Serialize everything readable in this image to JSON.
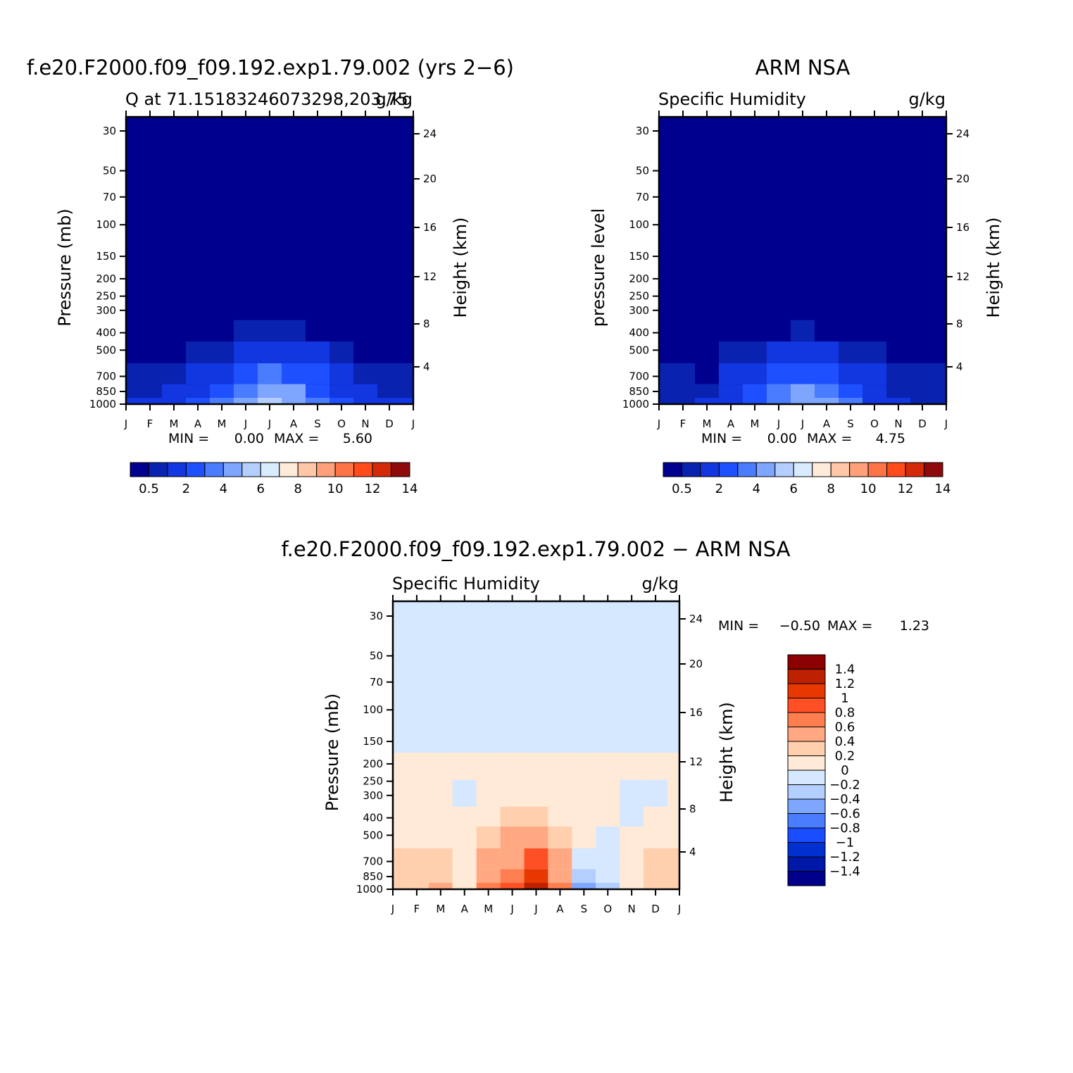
{
  "chart_data": [
    {
      "type": "heatmap",
      "title": "f.e20.F2000.f09_f09.192.exp1.79.002 (yrs 2−6)",
      "subtitle_left": "Q at 71.15183246073298,203.75",
      "subtitle_right": "g/kg",
      "xlabel": "",
      "ylabel": "Pressure (mb)",
      "y2label": "Height (km)",
      "x_ticks": [
        "J",
        "F",
        "M",
        "A",
        "M",
        "J",
        "J",
        "A",
        "S",
        "O",
        "N",
        "D",
        "J"
      ],
      "y_ticks": [
        30,
        50,
        70,
        100,
        150,
        200,
        250,
        300,
        400,
        500,
        700,
        850,
        1000
      ],
      "y_scale": "log",
      "ylim": [
        20,
        1000
      ],
      "y2_ticks": [
        24,
        20,
        16,
        12,
        8,
        4
      ],
      "min_label": "MIN =",
      "min_value": "0.00",
      "max_label": "MAX =",
      "max_value": "5.60",
      "colorbar_labels": [
        "0.5",
        "2",
        "4",
        "6",
        "8",
        "10",
        "12",
        "14"
      ],
      "months": [
        "J",
        "F",
        "M",
        "A",
        "M",
        "J",
        "J",
        "A",
        "S",
        "O",
        "N",
        "D",
        "J"
      ],
      "levels_hPa": [
        1000,
        850,
        700,
        500,
        400
      ],
      "values_g_per_kg": [
        [
          1.0,
          1.0,
          1.2,
          2.2,
          3.0,
          4.2,
          5.6,
          4.8,
          3.4,
          2.0,
          1.2,
          1.0,
          1.0
        ],
        [
          0.9,
          0.9,
          1.0,
          1.9,
          2.6,
          3.7,
          4.9,
          4.1,
          2.9,
          1.7,
          1.0,
          0.9,
          0.9
        ],
        [
          0.5,
          0.6,
          0.6,
          1.3,
          1.8,
          2.6,
          3.4,
          2.9,
          2.0,
          1.1,
          0.7,
          0.6,
          0.5
        ],
        [
          0.3,
          0.3,
          0.3,
          0.6,
          0.9,
          1.2,
          1.6,
          1.4,
          1.0,
          0.6,
          0.4,
          0.3,
          0.3
        ],
        [
          0.2,
          0.2,
          0.2,
          0.3,
          0.4,
          0.5,
          0.6,
          0.5,
          0.4,
          0.3,
          0.2,
          0.2,
          0.2
        ]
      ]
    },
    {
      "type": "heatmap",
      "title": "ARM NSA",
      "subtitle_left": "Specific Humidity",
      "subtitle_right": "g/kg",
      "xlabel": "",
      "ylabel": "pressure level",
      "y2label": "Height (km)",
      "x_ticks": [
        "J",
        "F",
        "M",
        "A",
        "M",
        "J",
        "J",
        "A",
        "S",
        "O",
        "N",
        "D",
        "J"
      ],
      "y_ticks": [
        30,
        50,
        70,
        100,
        150,
        200,
        250,
        300,
        400,
        500,
        700,
        850,
        1000
      ],
      "y_scale": "log",
      "ylim": [
        20,
        1000
      ],
      "y2_ticks": [
        24,
        20,
        16,
        12,
        8,
        4
      ],
      "min_label": "MIN =",
      "min_value": "0.00",
      "max_label": "MAX =",
      "max_value": "4.75",
      "colorbar_labels": [
        "0.5",
        "2",
        "4",
        "6",
        "8",
        "10",
        "12",
        "14"
      ],
      "months": [
        "J",
        "F",
        "M",
        "A",
        "M",
        "J",
        "J",
        "A",
        "S",
        "O",
        "N",
        "D",
        "J"
      ],
      "levels_hPa": [
        1000,
        850,
        700,
        500,
        400
      ],
      "values_g_per_kg": [
        [
          0.9,
          0.9,
          1.0,
          1.9,
          2.8,
          3.8,
          4.75,
          4.2,
          3.0,
          1.8,
          1.1,
          0.9,
          0.9
        ],
        [
          0.8,
          0.8,
          0.8,
          1.6,
          2.3,
          3.2,
          4.0,
          3.5,
          2.5,
          1.5,
          0.9,
          0.8,
          0.8
        ],
        [
          0.5,
          0.5,
          0.4,
          1.0,
          1.5,
          2.2,
          2.8,
          2.4,
          1.7,
          1.0,
          0.6,
          0.5,
          0.5
        ],
        [
          0.3,
          0.3,
          0.3,
          0.5,
          0.8,
          1.0,
          1.3,
          1.1,
          0.8,
          0.5,
          0.3,
          0.3,
          0.3
        ],
        [
          0.2,
          0.2,
          0.2,
          0.2,
          0.3,
          0.4,
          0.5,
          0.4,
          0.3,
          0.2,
          0.2,
          0.2,
          0.2
        ]
      ]
    },
    {
      "type": "heatmap",
      "title": "f.e20.F2000.f09_f09.192.exp1.79.002 − ARM NSA",
      "subtitle_left": "Specific Humidity",
      "subtitle_right": "g/kg",
      "xlabel": "",
      "ylabel": "Pressure (mb)",
      "y2label": "Height (km)",
      "x_ticks": [
        "J",
        "F",
        "M",
        "A",
        "M",
        "J",
        "J",
        "A",
        "S",
        "O",
        "N",
        "D",
        "J"
      ],
      "y_ticks": [
        30,
        50,
        70,
        100,
        150,
        200,
        250,
        300,
        400,
        500,
        700,
        850,
        1000
      ],
      "y_scale": "log",
      "ylim": [
        20,
        1000
      ],
      "y2_ticks": [
        24,
        20,
        16,
        12,
        8,
        4
      ],
      "min_label": "MIN =",
      "min_value": "−0.50",
      "max_label": "MAX =",
      "max_value": "1.23",
      "colorbar_labels": [
        "1.4",
        "1.2",
        "1",
        "0.8",
        "0.6",
        "0.4",
        "0.2",
        "0",
        "−0.2",
        "−0.4",
        "−0.6",
        "−0.8",
        "−1",
        "−1.2",
        "−1.4"
      ],
      "months": [
        "J",
        "F",
        "M",
        "A",
        "M",
        "J",
        "J",
        "A",
        "S",
        "O",
        "N",
        "D",
        "J"
      ],
      "levels_hPa": [
        1000,
        850,
        700,
        500,
        400,
        300,
        200,
        150
      ],
      "values_g_per_kg": [
        [
          0.3,
          0.35,
          0.4,
          0.1,
          0.6,
          0.8,
          1.23,
          0.6,
          -0.5,
          -0.3,
          0.1,
          0.3,
          0.3
        ],
        [
          0.3,
          0.3,
          0.3,
          0.05,
          0.5,
          0.7,
          1.0,
          0.5,
          -0.4,
          -0.2,
          0.1,
          0.35,
          0.3
        ],
        [
          0.25,
          0.25,
          0.2,
          0.05,
          0.4,
          0.55,
          0.8,
          0.4,
          -0.2,
          -0.1,
          0.1,
          0.3,
          0.2
        ],
        [
          0.1,
          0.1,
          0.1,
          0.05,
          0.3,
          0.4,
          0.5,
          0.2,
          0.0,
          -0.05,
          0.05,
          0.1,
          0.1
        ],
        [
          0.05,
          0.05,
          0.05,
          0.0,
          0.1,
          0.2,
          0.3,
          0.1,
          0.05,
          0.0,
          -0.05,
          0.05,
          0.05
        ],
        [
          0.05,
          0.05,
          0.05,
          -0.05,
          0.05,
          0.05,
          0.1,
          0.05,
          0.05,
          0.05,
          -0.05,
          -0.05,
          0.05
        ],
        [
          0.05,
          0.05,
          0.05,
          0.05,
          0.05,
          0.05,
          0.05,
          0.05,
          0.05,
          0.05,
          0.05,
          0.05,
          0.05
        ],
        [
          -0.05,
          -0.05,
          -0.05,
          -0.05,
          -0.05,
          -0.05,
          -0.05,
          -0.05,
          -0.05,
          -0.05,
          -0.05,
          -0.05,
          -0.05
        ]
      ]
    }
  ],
  "colors": {
    "seq_palette": [
      "#00008f",
      "#0a22b0",
      "#1236e0",
      "#1e50ff",
      "#4a7cff",
      "#7ea6ff",
      "#b4ceff",
      "#d9ebff",
      "#ffebd9",
      "#ffc6a8",
      "#ffa07a",
      "#ff7446",
      "#ff4a1a",
      "#d42a0a",
      "#8f0a0a"
    ],
    "diff_palette": [
      "#8b0000",
      "#bd2100",
      "#e63800",
      "#ff5025",
      "#ff7e50",
      "#ffa882",
      "#ffcfae",
      "#ffe9d7",
      "#d6e8ff",
      "#b3cfff",
      "#7ea6ff",
      "#4a7cff",
      "#1a4dff",
      "#0030d0",
      "#0018a8",
      "#00008b"
    ]
  }
}
